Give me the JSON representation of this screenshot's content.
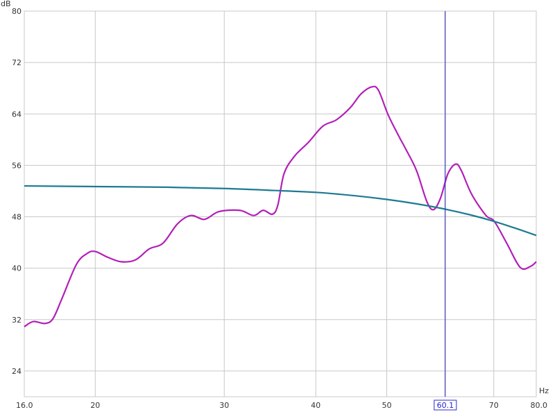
{
  "chart_data": {
    "type": "line",
    "title": "",
    "xlabel": "Hz",
    "ylabel": "dB",
    "xscale": "log",
    "xlim": [
      16,
      80
    ],
    "ylim": [
      20,
      80
    ],
    "grid": true,
    "x_ticks": [
      16,
      20,
      30,
      40,
      50,
      60,
      70,
      80
    ],
    "x_tick_labels": [
      "16.0",
      "20",
      "30",
      "40",
      "50",
      "",
      "70",
      "80.0"
    ],
    "y_ticks": [
      24,
      32,
      40,
      48,
      56,
      64,
      72,
      80
    ],
    "y_tick_labels": [
      "24",
      "32",
      "40",
      "48",
      "56",
      "64",
      "72",
      "80"
    ],
    "cursor": {
      "x": 60.1,
      "label": "60.1",
      "color": "#2a2ac8"
    },
    "series": [
      {
        "color": "#b21fb8",
        "x": [
          16,
          16.46,
          17.06,
          17.5,
          18.0,
          18.85,
          19.5,
          20,
          20.8,
          21.7,
          22.7,
          23.7,
          24.75,
          25.9,
          27.0,
          28.2,
          29.5,
          31.5,
          32.9,
          33.9,
          34.9,
          35.5,
          36.2,
          37.4,
          39.1,
          40.9,
          42.7,
          44.6,
          46.1,
          47.7,
          48.7,
          50.2,
          51.9,
          53.1,
          54.9,
          56.7,
          57.9,
          59.2,
          60.6,
          62.1,
          63.2,
          65.3,
          68.3,
          70.1,
          72.9,
          76.1,
          78.6,
          80
        ],
        "y": [
          30.9,
          31.7,
          31.4,
          32.1,
          35.2,
          40.6,
          42.3,
          42.6,
          41.7,
          41.0,
          41.3,
          43.0,
          43.9,
          46.9,
          48.2,
          47.6,
          48.8,
          49.0,
          48.2,
          49.0,
          48.4,
          49.8,
          54.7,
          57.4,
          59.6,
          62.1,
          63.1,
          65.0,
          67.1,
          68.2,
          67.7,
          63.9,
          60.6,
          58.5,
          55.2,
          50.4,
          49.1,
          50.9,
          54.7,
          56.2,
          55.2,
          51.5,
          48.2,
          47.3,
          43.9,
          40.1,
          40.3,
          41.0
        ]
      },
      {
        "color": "#1c7a92",
        "x": [
          16,
          20,
          25,
          30,
          35,
          40,
          45,
          50,
          55,
          60,
          65,
          70,
          75,
          80
        ],
        "y": [
          52.8,
          52.7,
          52.6,
          52.4,
          52.1,
          51.8,
          51.3,
          50.7,
          50.0,
          49.2,
          48.3,
          47.3,
          46.2,
          45.1
        ]
      }
    ]
  }
}
